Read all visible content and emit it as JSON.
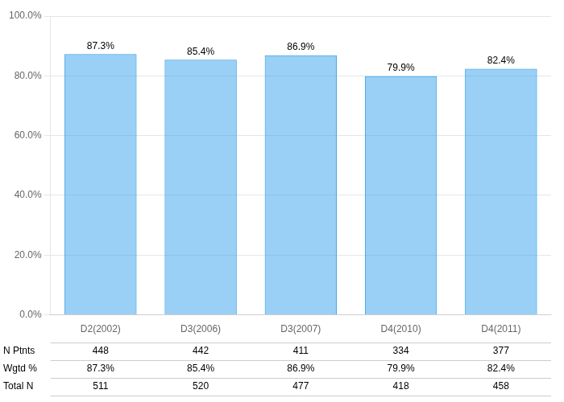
{
  "chart_data": {
    "type": "bar",
    "categories": [
      "D2(2002)",
      "D3(2006)",
      "D3(2007)",
      "D4(2010)",
      "D4(2011)"
    ],
    "values": [
      87.3,
      85.4,
      86.9,
      79.9,
      82.4
    ],
    "value_labels": [
      "87.3%",
      "85.4%",
      "86.9%",
      "79.9%",
      "82.4%"
    ],
    "data_labels": true,
    "ylim": [
      0,
      100
    ],
    "yticks": [
      {
        "value": 0,
        "label": "0.0%"
      },
      {
        "value": 20,
        "label": "20.0%"
      },
      {
        "value": 40,
        "label": "40.0%"
      },
      {
        "value": 60,
        "label": "60.0%"
      },
      {
        "value": 80,
        "label": "80.0%"
      },
      {
        "value": 100,
        "label": "100.0%"
      }
    ],
    "grid": true,
    "table": [
      {
        "label": "N Ptnts",
        "values": [
          448,
          442,
          411,
          334,
          377
        ]
      },
      {
        "label": "Wgtd %",
        "values": [
          87.3,
          85.4,
          86.9,
          79.9,
          82.4
        ],
        "value_labels": [
          "87.3%",
          "85.4%",
          "86.9%",
          "79.9%",
          "82.4%"
        ]
      },
      {
        "label": "Total N",
        "values": [
          511,
          520,
          477,
          418,
          458
        ]
      }
    ]
  }
}
